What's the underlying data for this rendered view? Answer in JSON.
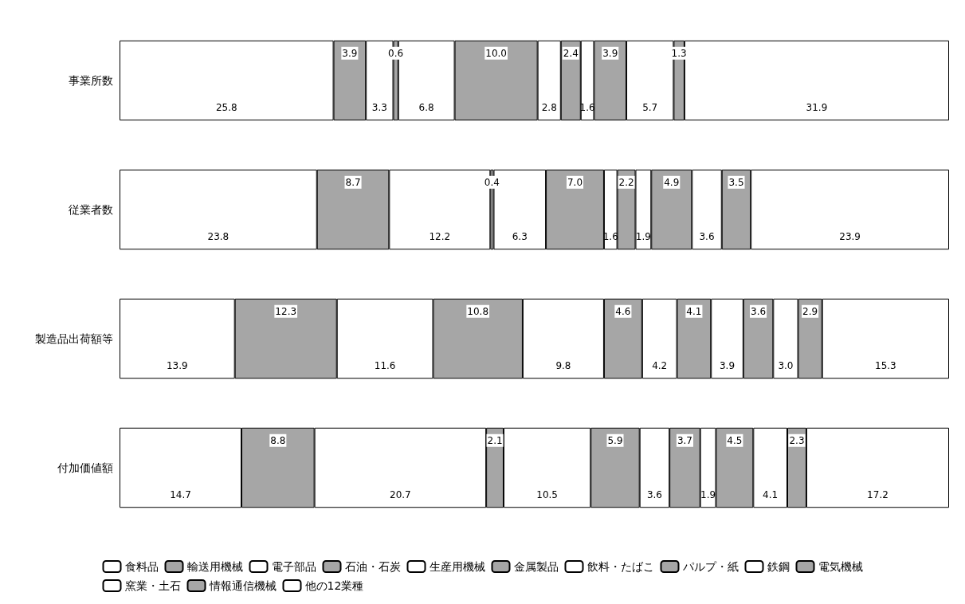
{
  "chart_data": {
    "type": "bar",
    "orientation": "horizontal",
    "stacked": true,
    "legend": "bottom",
    "tick_labels": "y",
    "categories": [
      "事業所数",
      "従業者数",
      "製造品出荷額等",
      "付加価値額"
    ],
    "series": [
      {
        "name": "食料品",
        "color": "#ffffff",
        "values": [
          25.8,
          23.8,
          13.9,
          14.7
        ],
        "value_labels": [
          "25.8",
          "23.8",
          "13.9",
          "14.7"
        ]
      },
      {
        "name": "輸送用機械",
        "color": "#a6a6a6",
        "values": [
          3.9,
          8.7,
          12.3,
          8.8
        ],
        "value_labels": [
          "3.9",
          "8.7",
          "12.3",
          "8.8"
        ]
      },
      {
        "name": "電子部品",
        "color": "#ffffff",
        "values": [
          3.3,
          12.2,
          11.6,
          20.7
        ],
        "value_labels": [
          "3.3",
          "12.2",
          "11.6",
          "20.7"
        ]
      },
      {
        "name": "石油・石炭",
        "color": "#a6a6a6",
        "values": [
          0.6,
          0.4,
          10.8,
          2.1
        ],
        "value_labels": [
          "0.6",
          "0.4",
          "10.8",
          "2.1"
        ]
      },
      {
        "name": "生産用機械",
        "color": "#ffffff",
        "values": [
          6.8,
          6.3,
          9.8,
          10.5
        ],
        "value_labels": [
          "6.8",
          "6.3",
          "9.8",
          "10.5"
        ]
      },
      {
        "name": "金属製品",
        "color": "#a6a6a6",
        "values": [
          10.0,
          7.0,
          4.6,
          5.9
        ],
        "value_labels": [
          "10.0",
          "7.0",
          "4.6",
          "5.9"
        ]
      },
      {
        "name": "飲料・たばこ",
        "color": "#ffffff",
        "values": [
          2.8,
          1.6,
          4.2,
          3.6
        ],
        "value_labels": [
          "2.8",
          "1.6",
          "4.2",
          "3.6"
        ]
      },
      {
        "name": "パルプ・紙",
        "color": "#a6a6a6",
        "values": [
          2.4,
          2.2,
          4.1,
          3.7
        ],
        "value_labels": [
          "2.4",
          "2.2",
          "4.1",
          "3.7"
        ]
      },
      {
        "name": "鉄鋼",
        "color": "#ffffff",
        "values": [
          1.6,
          1.9,
          3.9,
          1.9
        ],
        "value_labels": [
          "1.6",
          "1.9",
          "3.9",
          "1.9"
        ]
      },
      {
        "name": "電気機械",
        "color": "#a6a6a6",
        "values": [
          3.9,
          4.9,
          3.6,
          4.5
        ],
        "value_labels": [
          "3.9",
          "4.9",
          "3.6",
          "4.5"
        ]
      },
      {
        "name": "窯業・土石",
        "color": "#ffffff",
        "values": [
          5.7,
          3.6,
          3.0,
          4.1
        ],
        "value_labels": [
          "5.7",
          "3.6",
          "3.0",
          "4.1"
        ]
      },
      {
        "name": "情報通信機械",
        "color": "#a6a6a6",
        "values": [
          1.3,
          3.5,
          2.9,
          2.3
        ],
        "value_labels": [
          "1.3",
          "3.5",
          "2.9",
          "2.3"
        ]
      },
      {
        "name": "他の12業種",
        "color": "#ffffff",
        "values": [
          31.9,
          23.9,
          15.3,
          17.2
        ],
        "value_labels": [
          "31.9",
          "23.9",
          "15.3",
          "17.2"
        ]
      }
    ]
  }
}
